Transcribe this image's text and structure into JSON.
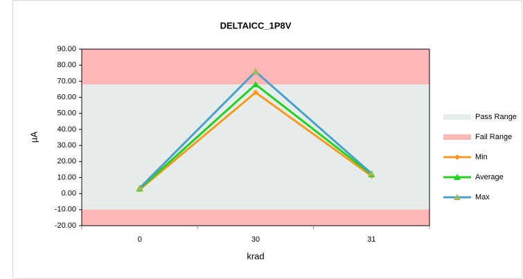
{
  "chart_data": {
    "type": "line",
    "title": "DELTAICC_1P8V",
    "x_label": "krad",
    "y_label": "µA",
    "categories": [
      "0",
      "30",
      "31"
    ],
    "ylim": [
      -20,
      90
    ],
    "yticks": [
      {
        "value": -20,
        "label": "-20.00"
      },
      {
        "value": -10,
        "label": "-10.00"
      },
      {
        "value": 0,
        "label": "0.00"
      },
      {
        "value": 10,
        "label": "10.00"
      },
      {
        "value": 20,
        "label": "20.00"
      },
      {
        "value": 30,
        "label": "30.00"
      },
      {
        "value": 40,
        "label": "40.00"
      },
      {
        "value": 50,
        "label": "50.00"
      },
      {
        "value": 60,
        "label": "60.00"
      },
      {
        "value": 70,
        "label": "70.00"
      },
      {
        "value": 80,
        "label": "80.00"
      },
      {
        "value": 90,
        "label": "90.00"
      }
    ],
    "bands": [
      {
        "name": "Pass Range",
        "color": "#e6ecea",
        "ranges": [
          [
            -10,
            68
          ]
        ]
      },
      {
        "name": "Fail Range",
        "color": "#ffb6b6",
        "ranges": [
          [
            68,
            90
          ],
          [
            -20,
            -10
          ]
        ]
      }
    ],
    "series": [
      {
        "name": "Min",
        "color": "#f7981d",
        "marker": "diamond",
        "marker_color": "#f7981d",
        "values": [
          2.5,
          63,
          11
        ]
      },
      {
        "name": "Average",
        "color": "#1fd21f",
        "marker": "triangle",
        "marker_color": "#1fd21f",
        "values": [
          3,
          68,
          12
        ]
      },
      {
        "name": "Max",
        "color": "#4a9fcb",
        "marker": "triangle",
        "marker_color": "#9bbb59",
        "values": [
          3.5,
          76,
          12.5
        ]
      }
    ],
    "legend": "right"
  }
}
